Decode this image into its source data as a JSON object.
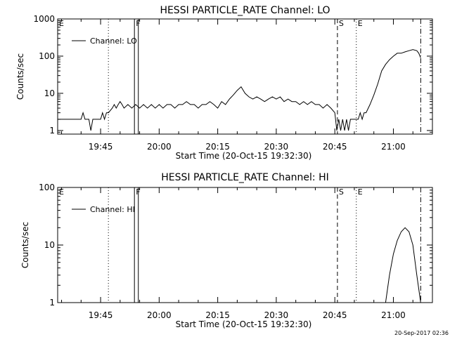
{
  "footer_timestamp": "20-Sep-2017 02:36",
  "chart_data": [
    {
      "type": "line",
      "title": "HESSI PARTICLE_RATE Channel: LO",
      "xlabel": "Start Time (20-Oct-15 19:32:30)",
      "ylabel": "Counts/sec",
      "y_scale": "log",
      "xlim": [
        "19:34:00",
        "21:10:00"
      ],
      "ylim": [
        0.8,
        1000
      ],
      "x_ticks": [
        "19:45",
        "20:00",
        "20:15",
        "20:30",
        "20:45",
        "21:00"
      ],
      "y_ticks": [
        "1",
        "10",
        "100",
        "1000"
      ],
      "legend": {
        "placement": "top-left",
        "entries": [
          "Channel: LO"
        ]
      },
      "markers": [
        {
          "label": "E",
          "time": "19:34:00",
          "style": "none"
        },
        {
          "label": "",
          "time": "19:47:00",
          "style": "dotted"
        },
        {
          "label": "F",
          "time": "19:53:40",
          "style": "solid"
        },
        {
          "label": "",
          "time": "19:54:40",
          "style": "solid"
        },
        {
          "label": "S",
          "time": "20:45:40",
          "style": "dashed"
        },
        {
          "label": "E",
          "time": "20:50:30",
          "style": "dotted"
        },
        {
          "label": "",
          "time": "21:07:00",
          "style": "dashdot"
        }
      ],
      "series": [
        {
          "name": "Channel: LO",
          "x": [
            "19:34:00",
            "19:38:00",
            "19:40:00",
            "19:40:30",
            "19:41:00",
            "19:42:00",
            "19:42:30",
            "19:43:00",
            "19:44:00",
            "19:45:00",
            "19:45:30",
            "19:46:00",
            "19:46:30",
            "19:47:00",
            "19:48:00",
            "19:48:30",
            "19:49:00",
            "19:49:30",
            "19:50:00",
            "19:50:30",
            "19:51:00",
            "19:52:00",
            "19:53:00",
            "19:54:00",
            "19:55:00",
            "19:56:00",
            "19:57:00",
            "19:58:00",
            "19:59:00",
            "20:00:00",
            "20:01:00",
            "20:02:00",
            "20:03:00",
            "20:04:00",
            "20:05:00",
            "20:06:00",
            "20:07:00",
            "20:08:00",
            "20:09:00",
            "20:10:00",
            "20:11:00",
            "20:12:00",
            "20:13:00",
            "20:14:00",
            "20:15:00",
            "20:16:00",
            "20:17:00",
            "20:18:00",
            "20:19:00",
            "20:20:00",
            "20:21:00",
            "20:22:00",
            "20:23:00",
            "20:24:00",
            "20:25:00",
            "20:26:00",
            "20:27:00",
            "20:28:00",
            "20:29:00",
            "20:30:00",
            "20:31:00",
            "20:32:00",
            "20:33:00",
            "20:34:00",
            "20:35:00",
            "20:36:00",
            "20:37:00",
            "20:38:00",
            "20:39:00",
            "20:40:00",
            "20:41:00",
            "20:42:00",
            "20:43:00",
            "20:44:00",
            "20:45:00",
            "20:45:30",
            "20:46:00",
            "20:46:30",
            "20:47:00",
            "20:47:30",
            "20:48:00",
            "20:48:30",
            "20:49:00",
            "20:50:00",
            "20:51:00",
            "20:51:30",
            "20:52:00",
            "20:52:30",
            "20:53:00",
            "20:54:00",
            "20:55:00",
            "20:56:00",
            "20:57:00",
            "20:58:00",
            "20:59:00",
            "21:00:00",
            "21:01:00",
            "21:02:00",
            "21:03:00",
            "21:04:00",
            "21:05:00",
            "21:06:00",
            "21:06:30",
            "21:07:00"
          ],
          "y": [
            2,
            2,
            2,
            3,
            2,
            2,
            1,
            2,
            2,
            2,
            3,
            2,
            3,
            3,
            4,
            5,
            4,
            5,
            6,
            5,
            4,
            5,
            4,
            5,
            4,
            5,
            4,
            5,
            4,
            5,
            4,
            5,
            5,
            4,
            5,
            5,
            6,
            5,
            5,
            4,
            5,
            5,
            6,
            5,
            4,
            6,
            5,
            7,
            9,
            12,
            15,
            10,
            8,
            7,
            8,
            7,
            6,
            7,
            8,
            7,
            8,
            6,
            7,
            6,
            6,
            5,
            6,
            5,
            6,
            5,
            5,
            4,
            5,
            4,
            3,
            1,
            2,
            1,
            2,
            1,
            2,
            1,
            2,
            2,
            2,
            3,
            2,
            3,
            3,
            5,
            9,
            18,
            40,
            60,
            80,
            100,
            120,
            120,
            130,
            140,
            150,
            140,
            120,
            90
          ]
        }
      ]
    },
    {
      "type": "line",
      "title": "HESSI PARTICLE_RATE Channel: HI",
      "xlabel": "Start Time (20-Oct-15 19:32:30)",
      "ylabel": "Counts/sec",
      "y_scale": "log",
      "xlim": [
        "19:34:00",
        "21:10:00"
      ],
      "ylim": [
        1,
        100
      ],
      "x_ticks": [
        "19:45",
        "20:00",
        "20:15",
        "20:30",
        "20:45",
        "21:00"
      ],
      "y_ticks": [
        "1",
        "10",
        "100"
      ],
      "legend": {
        "placement": "top-left",
        "entries": [
          "Channel: HI"
        ]
      },
      "markers": [
        {
          "label": "E",
          "time": "19:34:00",
          "style": "none"
        },
        {
          "label": "",
          "time": "19:47:00",
          "style": "dotted"
        },
        {
          "label": "F",
          "time": "19:53:40",
          "style": "solid"
        },
        {
          "label": "",
          "time": "19:54:40",
          "style": "solid"
        },
        {
          "label": "S",
          "time": "20:45:40",
          "style": "dashed"
        },
        {
          "label": "E",
          "time": "20:50:30",
          "style": "dotted"
        },
        {
          "label": "",
          "time": "21:07:00",
          "style": "dashdot"
        }
      ],
      "series": [
        {
          "name": "Channel: HI",
          "x": [
            "20:58:00",
            "20:59:00",
            "21:00:00",
            "21:01:00",
            "21:02:00",
            "21:03:00",
            "21:04:00",
            "21:05:00",
            "21:06:00",
            "21:07:00"
          ],
          "y": [
            1,
            3,
            7,
            12,
            17,
            20,
            17,
            10,
            3,
            1
          ]
        }
      ]
    }
  ]
}
